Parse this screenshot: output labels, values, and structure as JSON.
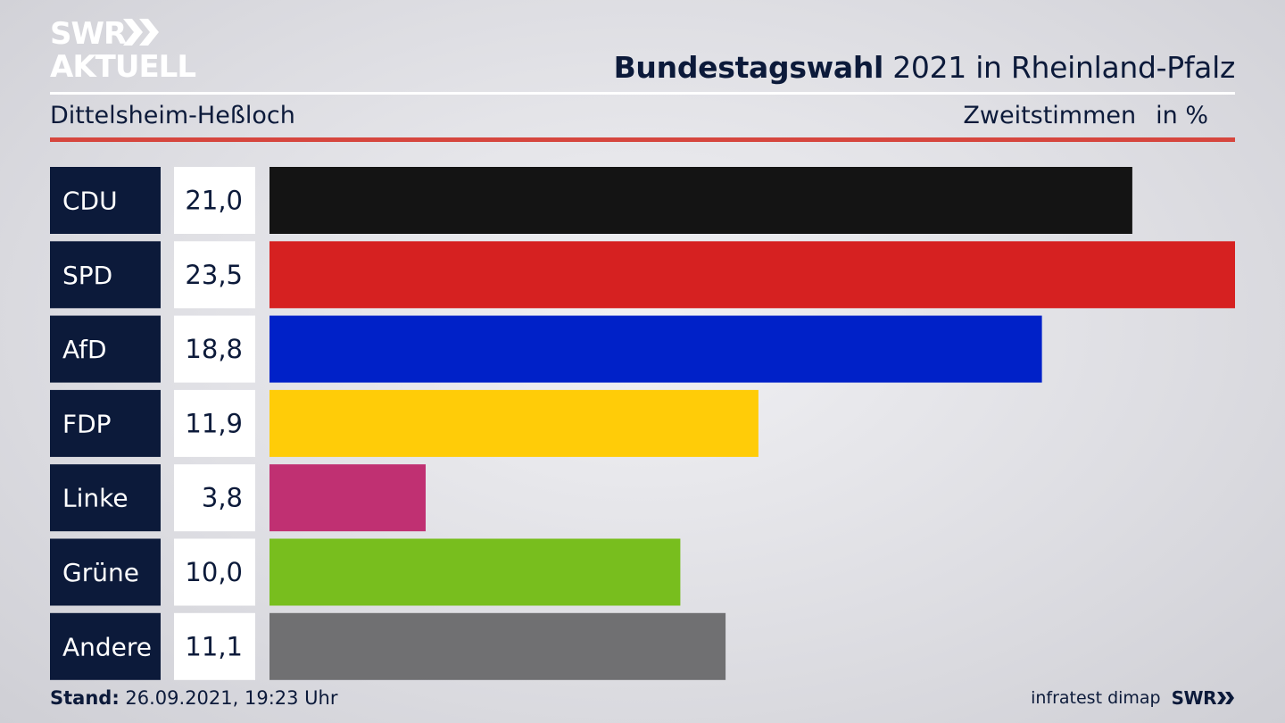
{
  "brand": {
    "line1": "SWR",
    "line2": "AKTUELL"
  },
  "header": {
    "title_bold": "Bundestagswahl",
    "title_rest": " 2021 in Rheinland-Pfalz",
    "subtitle": "Dittelsheim-Heßloch",
    "measure": "Zweitstimmen",
    "unit": "in %"
  },
  "footer": {
    "stand_label": "Stand:",
    "stand_value": " 26.09.2021, 19:23 Uhr",
    "source": "infratest dimap",
    "swr": "SWR"
  },
  "colors": {
    "label_bg": "#0c1a3a",
    "value_bg": "#ffffff",
    "accent_rule": "#d6463e"
  },
  "chart_data": {
    "type": "bar",
    "orientation": "horizontal",
    "categories": [
      "CDU",
      "SPD",
      "AfD",
      "FDP",
      "Linke",
      "Grüne",
      "Andere"
    ],
    "values": [
      21.0,
      23.5,
      18.8,
      11.9,
      3.8,
      10.0,
      11.1
    ],
    "value_labels": [
      "21,0",
      "23,5",
      "18,8",
      "11,9",
      "3,8",
      "10,0",
      "11,1"
    ],
    "bar_colors": [
      "#141414",
      "#d62121",
      "#0021c8",
      "#ffcc08",
      "#c03072",
      "#78be1e",
      "#707072"
    ],
    "xlim": [
      0,
      23.5
    ],
    "grid": false,
    "legend": "none"
  }
}
